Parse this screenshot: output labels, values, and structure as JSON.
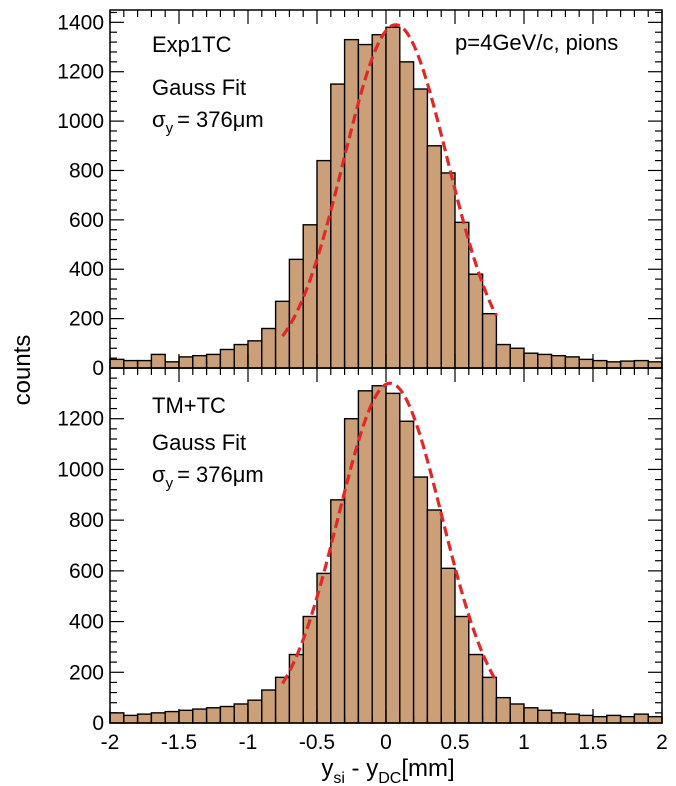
{
  "chart_data": [
    {
      "type": "histogram",
      "name": "Exp1TC",
      "label": "Exp1TC",
      "fit_label": "Gauss Fit",
      "sigma_symbol": "σ",
      "sigma_sub": "y",
      "sigma_value": "= 376μm",
      "info": "p=4GeV/c, pions",
      "xlim": [
        -2,
        2
      ],
      "ylim": [
        0,
        1450
      ],
      "yticks": [
        0,
        200,
        400,
        600,
        800,
        1000,
        1200,
        1400
      ],
      "bin_width": 0.1,
      "x_edges_start": -2,
      "values": [
        35,
        30,
        30,
        55,
        25,
        45,
        50,
        55,
        75,
        95,
        110,
        160,
        270,
        440,
        580,
        840,
        1150,
        1330,
        1310,
        1350,
        1380,
        1240,
        1130,
        900,
        790,
        590,
        380,
        220,
        95,
        80,
        60,
        55,
        50,
        45,
        35,
        30,
        25,
        28,
        30,
        25
      ],
      "fit": {
        "mean": 0.07,
        "sigma": 0.376,
        "amplitude": 1390,
        "range": [
          -0.75,
          0.8
        ]
      }
    },
    {
      "type": "histogram",
      "name": "TM+TC",
      "label": "TM+TC",
      "fit_label": "Gauss Fit",
      "sigma_symbol": "σ",
      "sigma_sub": "y",
      "sigma_value": "= 376μm",
      "xlim": [
        -2,
        2
      ],
      "ylim": [
        0,
        1400
      ],
      "yticks": [
        0,
        200,
        400,
        600,
        800,
        1000,
        1200
      ],
      "xticks": [
        -2,
        -1.5,
        -1,
        -0.5,
        0,
        0.5,
        1,
        1.5,
        2
      ],
      "xlabel_main": "y",
      "xlabel_sub1": "si",
      "xlabel_mid": " - y",
      "xlabel_sub2": "DC",
      "xlabel_unit": "[mm]",
      "bin_width": 0.1,
      "x_edges_start": -2,
      "values": [
        40,
        30,
        35,
        40,
        45,
        50,
        55,
        60,
        65,
        75,
        90,
        130,
        180,
        270,
        420,
        590,
        880,
        1200,
        1310,
        1330,
        1300,
        1190,
        970,
        840,
        610,
        420,
        270,
        180,
        100,
        75,
        60,
        50,
        40,
        35,
        30,
        25,
        30,
        25,
        35,
        25
      ],
      "fit": {
        "mean": 0.03,
        "sigma": 0.376,
        "amplitude": 1340,
        "range": [
          -0.75,
          0.8
        ]
      }
    }
  ],
  "ylabel": "counts"
}
